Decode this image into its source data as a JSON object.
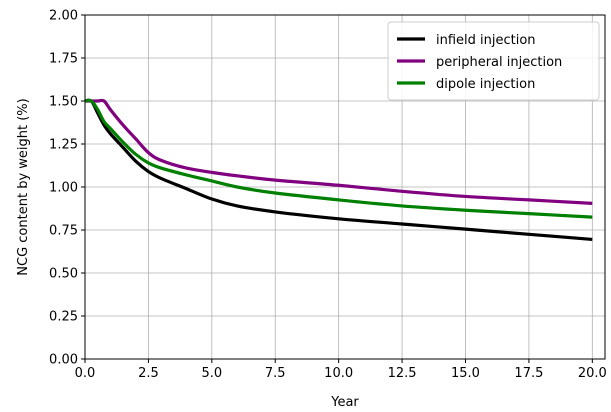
{
  "chart_data": {
    "type": "line",
    "title": "",
    "xlabel": "Year",
    "ylabel": "NCG content by weight (%)",
    "xlim": [
      0,
      20.5
    ],
    "ylim": [
      0,
      2.0
    ],
    "x_ticks": [
      "0.0",
      "2.5",
      "5.0",
      "7.5",
      "10.0",
      "12.5",
      "15.0",
      "17.5",
      "20.0"
    ],
    "y_ticks": [
      "0.00",
      "0.25",
      "0.50",
      "0.75",
      "1.00",
      "1.25",
      "1.50",
      "1.75",
      "2.00"
    ],
    "grid": true,
    "legend_position": "top-right",
    "series": [
      {
        "name": "infield injection",
        "color": "#000000",
        "points": [
          [
            0,
            1.5
          ],
          [
            0.25,
            1.5
          ],
          [
            0.5,
            1.43
          ],
          [
            0.75,
            1.36
          ],
          [
            1,
            1.31
          ],
          [
            1.5,
            1.23
          ],
          [
            2,
            1.15
          ],
          [
            2.5,
            1.09
          ],
          [
            3,
            1.05
          ],
          [
            4,
            0.99
          ],
          [
            5,
            0.93
          ],
          [
            6,
            0.89
          ],
          [
            7.5,
            0.855
          ],
          [
            10,
            0.815
          ],
          [
            12.5,
            0.785
          ],
          [
            15,
            0.755
          ],
          [
            17.5,
            0.725
          ],
          [
            20,
            0.695
          ]
        ]
      },
      {
        "name": "peripheral injection",
        "color": "#800080",
        "points": [
          [
            0,
            1.5
          ],
          [
            0.5,
            1.5
          ],
          [
            0.75,
            1.5
          ],
          [
            1,
            1.45
          ],
          [
            1.5,
            1.36
          ],
          [
            2,
            1.28
          ],
          [
            2.5,
            1.2
          ],
          [
            3,
            1.155
          ],
          [
            4,
            1.11
          ],
          [
            5,
            1.085
          ],
          [
            6,
            1.065
          ],
          [
            7.5,
            1.04
          ],
          [
            10,
            1.01
          ],
          [
            12.5,
            0.975
          ],
          [
            15,
            0.945
          ],
          [
            17.5,
            0.925
          ],
          [
            20,
            0.905
          ]
        ]
      },
      {
        "name": "dipole injection",
        "color": "#008000",
        "points": [
          [
            0,
            1.5
          ],
          [
            0.25,
            1.5
          ],
          [
            0.5,
            1.45
          ],
          [
            0.75,
            1.38
          ],
          [
            1,
            1.34
          ],
          [
            1.5,
            1.26
          ],
          [
            2,
            1.19
          ],
          [
            2.5,
            1.14
          ],
          [
            3,
            1.11
          ],
          [
            4,
            1.07
          ],
          [
            5,
            1.035
          ],
          [
            6,
            1.0
          ],
          [
            7.5,
            0.965
          ],
          [
            10,
            0.925
          ],
          [
            12.5,
            0.89
          ],
          [
            15,
            0.865
          ],
          [
            17.5,
            0.845
          ],
          [
            20,
            0.825
          ]
        ]
      }
    ]
  }
}
